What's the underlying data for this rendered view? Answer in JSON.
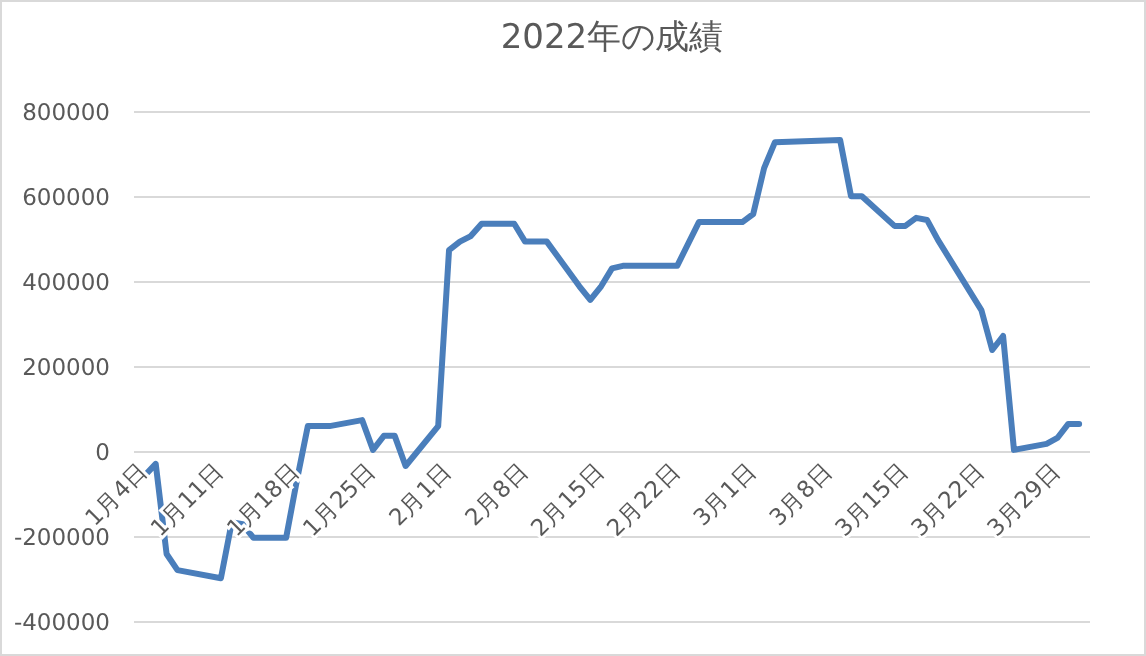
{
  "chart_data": {
    "type": "line",
    "title": "2022年の成績",
    "x": [
      "2022-01-04",
      "2022-01-05",
      "2022-01-06",
      "2022-01-07",
      "2022-01-11",
      "2022-01-12",
      "2022-01-13",
      "2022-01-14",
      "2022-01-17",
      "2022-01-18",
      "2022-01-19",
      "2022-01-21",
      "2022-01-24",
      "2022-01-25",
      "2022-01-26",
      "2022-01-27",
      "2022-01-28",
      "2022-01-31",
      "2022-02-01",
      "2022-02-02",
      "2022-02-03",
      "2022-02-04",
      "2022-02-07",
      "2022-02-08",
      "2022-02-10",
      "2022-02-13",
      "2022-02-14",
      "2022-02-15",
      "2022-02-16",
      "2022-02-17",
      "2022-02-22",
      "2022-02-24",
      "2022-02-28",
      "2022-03-01",
      "2022-03-02",
      "2022-03-03",
      "2022-03-09",
      "2022-03-10",
      "2022-03-11",
      "2022-03-14",
      "2022-03-15",
      "2022-03-16",
      "2022-03-17",
      "2022-03-18",
      "2022-03-22",
      "2022-03-23",
      "2022-03-24",
      "2022-03-25",
      "2022-03-28",
      "2022-03-29",
      "2022-03-30",
      "2022-03-31"
    ],
    "values": [
      -55000,
      -28000,
      -240000,
      -278000,
      -297000,
      -165000,
      -170000,
      -202000,
      -202000,
      -66000,
      61000,
      61000,
      75000,
      5000,
      38000,
      38000,
      -33000,
      61000,
      475000,
      495000,
      508000,
      537000,
      537000,
      495000,
      495000,
      390000,
      358000,
      390000,
      432000,
      438000,
      438000,
      541000,
      541000,
      560000,
      668000,
      729000,
      734000,
      602000,
      602000,
      532000,
      532000,
      551000,
      546000,
      499000,
      334000,
      240000,
      273000,
      5000,
      19000,
      33000,
      66000,
      66000
    ],
    "color": "#4a7ebb",
    "xlim": [
      "2022-01-03",
      "2022-04-01"
    ],
    "xticks": [
      {
        "value": "2022-01-04",
        "label": "1月4日"
      },
      {
        "value": "2022-01-11",
        "label": "1月11日"
      },
      {
        "value": "2022-01-18",
        "label": "1月18日"
      },
      {
        "value": "2022-01-25",
        "label": "1月25日"
      },
      {
        "value": "2022-02-01",
        "label": "2月1日"
      },
      {
        "value": "2022-02-08",
        "label": "2月8日"
      },
      {
        "value": "2022-02-15",
        "label": "2月15日"
      },
      {
        "value": "2022-02-22",
        "label": "2月22日"
      },
      {
        "value": "2022-03-01",
        "label": "3月1日"
      },
      {
        "value": "2022-03-08",
        "label": "3月8日"
      },
      {
        "value": "2022-03-15",
        "label": "3月15日"
      },
      {
        "value": "2022-03-22",
        "label": "3月22日"
      },
      {
        "value": "2022-03-29",
        "label": "3月29日"
      }
    ],
    "ylim": [
      -400000,
      800000
    ],
    "yticks": [
      -400000,
      -200000,
      0,
      200000,
      400000,
      600000,
      800000
    ],
    "grid": "y",
    "line_style": "solid"
  }
}
